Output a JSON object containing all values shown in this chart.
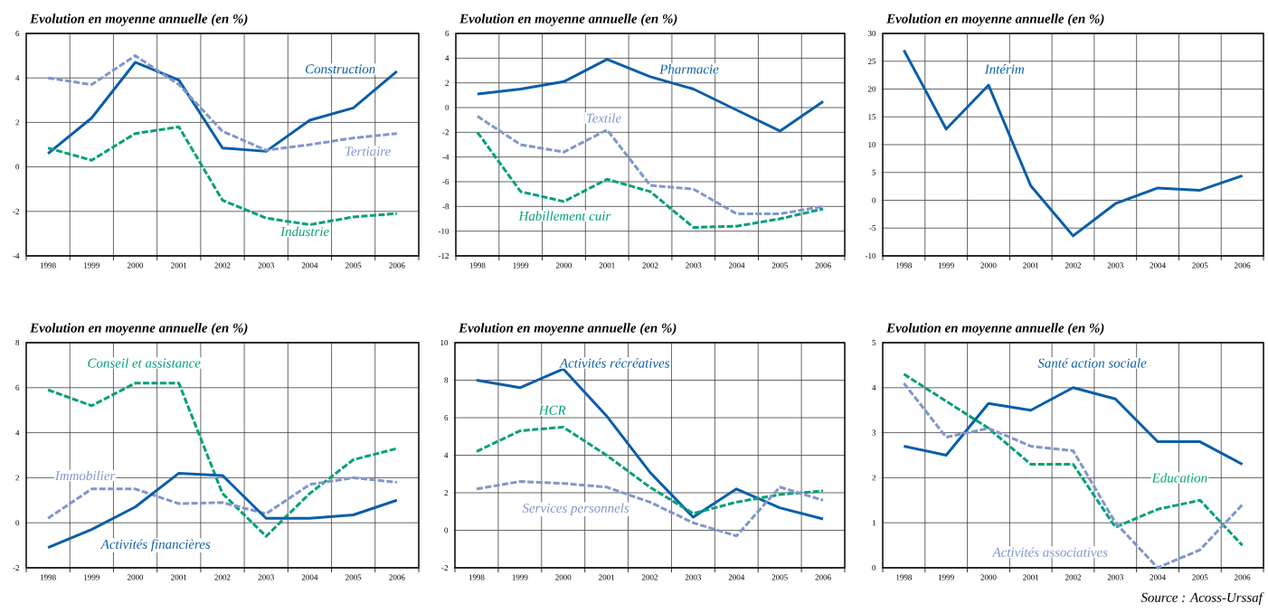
{
  "chart_data": [
    {
      "type": "line",
      "title": "Evolution en moyenne annuelle (en %)",
      "categories": [
        "1998",
        "1999",
        "2000",
        "2001",
        "2002",
        "2003",
        "2004",
        "2005",
        "2006"
      ],
      "ylim": [
        -4,
        6
      ],
      "yticks": [
        -4,
        -2,
        0,
        2,
        4,
        6
      ],
      "grid": true,
      "series": [
        {
          "name": "Construction",
          "color": "#0b5ea8",
          "line_style": "solid",
          "values": [
            0.6,
            2.2,
            4.7,
            3.9,
            0.85,
            0.7,
            2.1,
            2.65,
            4.3
          ]
        },
        {
          "name": "Tertiaire",
          "color": "#8096cc",
          "line_style": "dashed",
          "values": [
            4.0,
            3.7,
            5.0,
            3.7,
            1.6,
            0.75,
            1.0,
            1.3,
            1.5
          ]
        },
        {
          "name": "Industrie",
          "color": "#00a07a",
          "line_style": "dashed",
          "values": [
            0.85,
            0.3,
            1.5,
            1.8,
            -1.5,
            -2.3,
            -2.6,
            -2.25,
            -2.1
          ]
        }
      ]
    },
    {
      "type": "line",
      "title": "Evolution en moyenne annuelle (en %)",
      "categories": [
        "1998",
        "1999",
        "2000",
        "2001",
        "2002",
        "2003",
        "2004",
        "2005",
        "2006"
      ],
      "ylim": [
        -12,
        6
      ],
      "yticks": [
        -12,
        -10,
        -8,
        -6,
        -4,
        -2,
        0,
        2,
        4,
        6
      ],
      "grid": true,
      "series": [
        {
          "name": "Pharmacie",
          "color": "#0b5ea8",
          "line_style": "solid",
          "values": [
            1.1,
            1.5,
            2.1,
            3.9,
            2.5,
            1.5,
            -0.2,
            -1.9,
            0.5
          ]
        },
        {
          "name": "Textile",
          "color": "#8096cc",
          "line_style": "dashed",
          "values": [
            -0.7,
            -3.0,
            -3.6,
            -1.8,
            -6.3,
            -6.6,
            -8.6,
            -8.6,
            -8.0
          ]
        },
        {
          "name": "Habillement cuir",
          "color": "#00a07a",
          "line_style": "dashed",
          "values": [
            -2.0,
            -6.8,
            -7.6,
            -5.8,
            -6.8,
            -9.7,
            -9.6,
            -9.0,
            -8.2
          ]
        }
      ]
    },
    {
      "type": "line",
      "title": "Evolution en moyenne annuelle (en %)",
      "categories": [
        "1998",
        "1999",
        "2000",
        "2001",
        "2002",
        "2003",
        "2004",
        "2005",
        "2006"
      ],
      "ylim": [
        -10,
        30
      ],
      "yticks": [
        -10,
        -5,
        0,
        5,
        10,
        15,
        20,
        25,
        30
      ],
      "grid": true,
      "series": [
        {
          "name": "Intérim",
          "color": "#0b5ea8",
          "line_style": "solid",
          "values": [
            27,
            12.8,
            20.7,
            2.6,
            -6.4,
            -0.6,
            2.2,
            1.8,
            4.4
          ]
        }
      ]
    },
    {
      "type": "line",
      "title": "Evolution en moyenne annuelle (en %)",
      "categories": [
        "1998",
        "1999",
        "2000",
        "2001",
        "2002",
        "2003",
        "2004",
        "2005",
        "2006"
      ],
      "ylim": [
        -2,
        8
      ],
      "yticks": [
        -2,
        0,
        2,
        4,
        6,
        8
      ],
      "grid": true,
      "series": [
        {
          "name": "Conseil et assistance",
          "color": "#00a07a",
          "line_style": "dashed",
          "values": [
            5.9,
            5.2,
            6.2,
            6.2,
            1.3,
            -0.6,
            1.3,
            2.8,
            3.3
          ]
        },
        {
          "name": "Immobilier",
          "color": "#8096cc",
          "line_style": "dashed",
          "values": [
            0.2,
            1.5,
            1.5,
            0.85,
            0.9,
            0.4,
            1.7,
            2.0,
            1.8
          ]
        },
        {
          "name": "Activités financières",
          "color": "#0b5ea8",
          "line_style": "solid",
          "values": [
            -1.1,
            -0.3,
            0.7,
            2.2,
            2.1,
            0.2,
            0.2,
            0.35,
            1.0
          ]
        }
      ]
    },
    {
      "type": "line",
      "title": "Evolution en moyenne annuelle (en %)",
      "categories": [
        "1998",
        "1999",
        "2000",
        "2001",
        "2002",
        "2003",
        "2004",
        "2005",
        "2006"
      ],
      "ylim": [
        -2,
        10
      ],
      "yticks": [
        -2,
        0,
        2,
        4,
        6,
        8,
        10
      ],
      "grid": true,
      "series": [
        {
          "name": "Activités récréatives",
          "color": "#0b5ea8",
          "line_style": "solid",
          "values": [
            8.0,
            7.6,
            8.6,
            6.1,
            3.1,
            0.7,
            2.2,
            1.2,
            0.6
          ]
        },
        {
          "name": "HCR",
          "color": "#00a07a",
          "line_style": "dashed",
          "values": [
            4.2,
            5.3,
            5.5,
            4.0,
            2.3,
            0.9,
            1.5,
            1.9,
            2.1
          ]
        },
        {
          "name": "Services personnels",
          "color": "#8096cc",
          "line_style": "dashed",
          "values": [
            2.2,
            2.6,
            2.5,
            2.3,
            1.5,
            0.4,
            -0.3,
            2.3,
            1.6
          ]
        }
      ]
    },
    {
      "type": "line",
      "title": "Evolution en moyenne annuelle (en %)",
      "categories": [
        "1998",
        "1999",
        "2000",
        "2001",
        "2002",
        "2003",
        "2004",
        "2005",
        "2006"
      ],
      "ylim": [
        0,
        5
      ],
      "yticks": [
        0,
        1,
        2,
        3,
        4,
        5
      ],
      "grid": true,
      "series": [
        {
          "name": "Santé action sociale",
          "color": "#0b5ea8",
          "line_style": "solid",
          "values": [
            2.7,
            2.5,
            3.65,
            3.5,
            4.0,
            3.75,
            2.8,
            2.8,
            2.3
          ]
        },
        {
          "name": "Education",
          "color": "#00a07a",
          "line_style": "dashed",
          "values": [
            4.3,
            3.7,
            3.1,
            2.3,
            2.3,
            0.9,
            1.3,
            1.5,
            0.5
          ]
        },
        {
          "name": "Activités associatives",
          "color": "#8096cc",
          "line_style": "dashed",
          "values": [
            4.1,
            2.9,
            3.1,
            2.7,
            2.6,
            1.0,
            0.0,
            0.4,
            1.4
          ]
        }
      ],
      "annotations": [
        "Source : Acoss-Urssaf"
      ]
    }
  ]
}
